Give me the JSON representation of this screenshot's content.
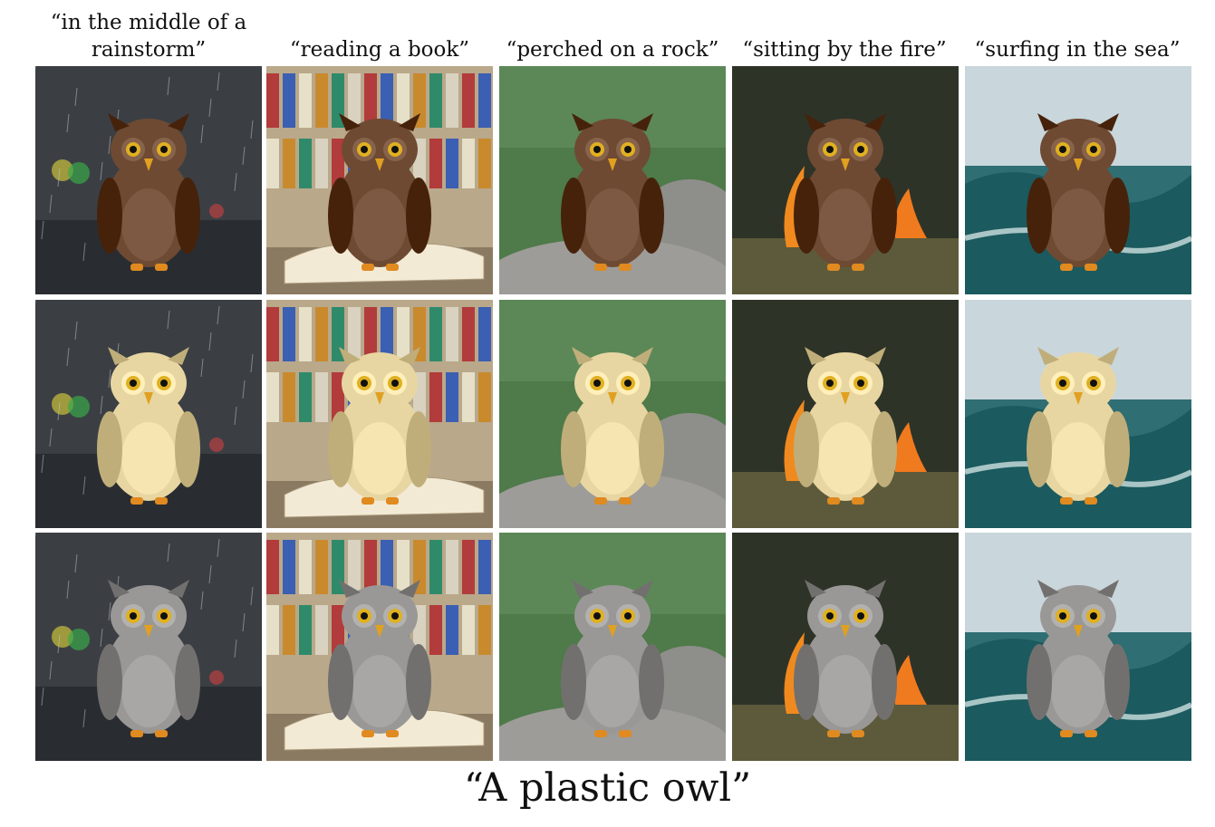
{
  "columns": [
    "“in the middle of a rainstorm”",
    "“reading a book”",
    "“perched on a rock”",
    "“sitting by the fire”",
    "“surfing in the sea”"
  ],
  "caption": "“A plastic owl”",
  "rows": [
    "brown",
    "cream",
    "gray"
  ],
  "owl_colors": {
    "brown": "#6e4a33",
    "cream": "#e8d6a2",
    "gray": "#9a9896"
  },
  "scene_colors": {
    "rain": "#3b3f44",
    "books": "#b9a88a",
    "rock": "#4f7a4a",
    "fire": "#2e3328",
    "sea": "#2f6e72"
  }
}
